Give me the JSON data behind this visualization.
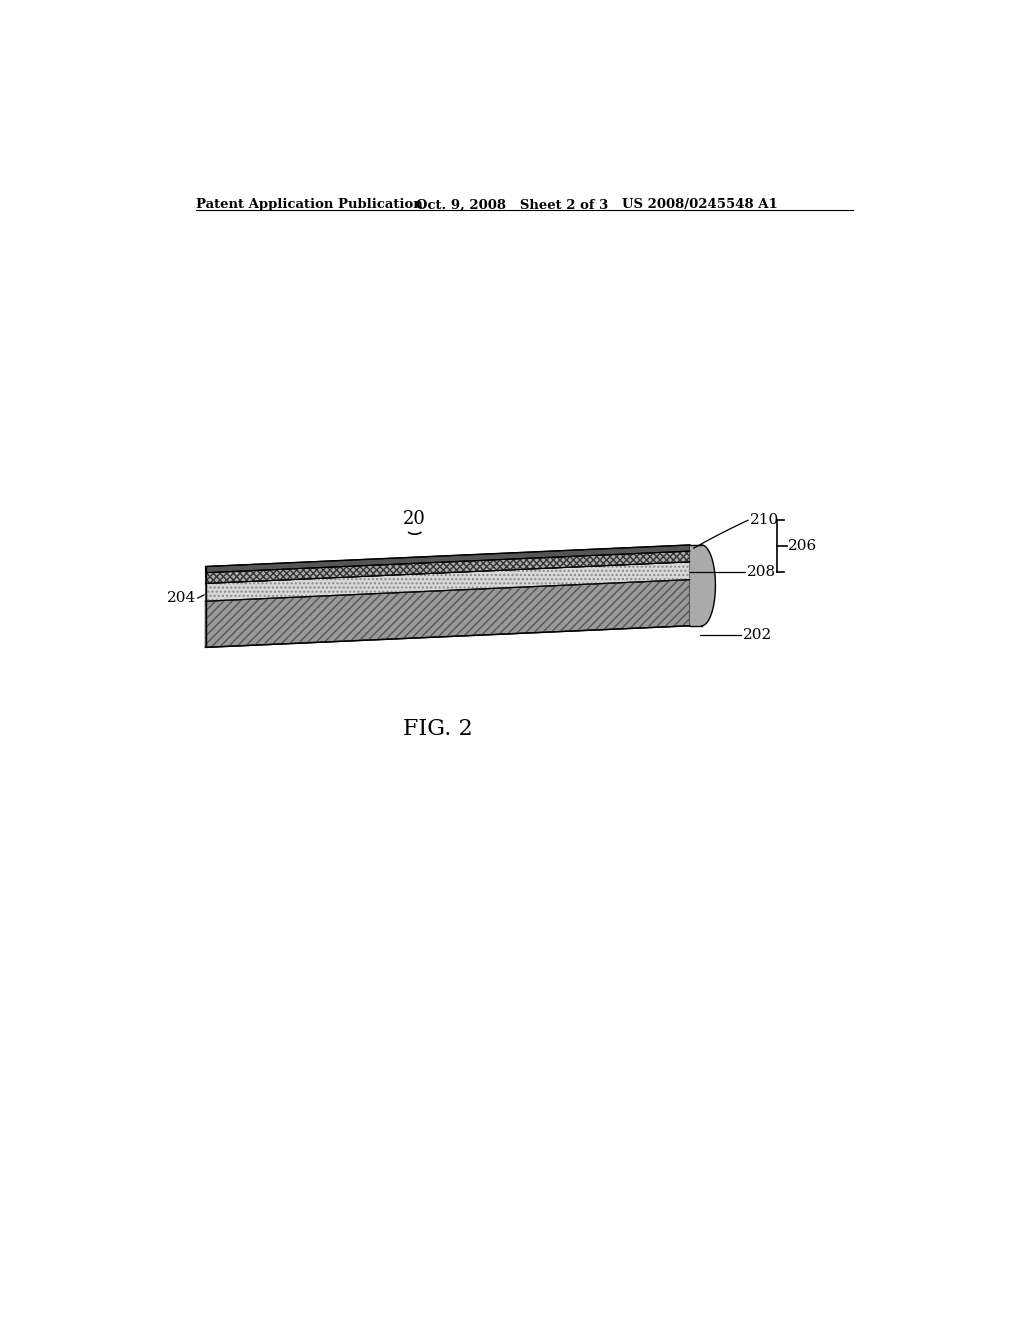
{
  "background_color": "#ffffff",
  "header_left": "Patent Application Publication",
  "header_mid": "Oct. 9, 2008   Sheet 2 of 3",
  "header_right": "US 2008/0245548 A1",
  "fig_label": "FIG. 2",
  "ref_num": "20",
  "label_202": "202",
  "label_204": "204",
  "label_206": "206",
  "label_208": "208",
  "label_210": "210",
  "layer_202_color": "#888888",
  "layer_204_color": "#d0d0d0",
  "layer_208_color": "#aaaaaa",
  "layer_210_color": "#444444"
}
